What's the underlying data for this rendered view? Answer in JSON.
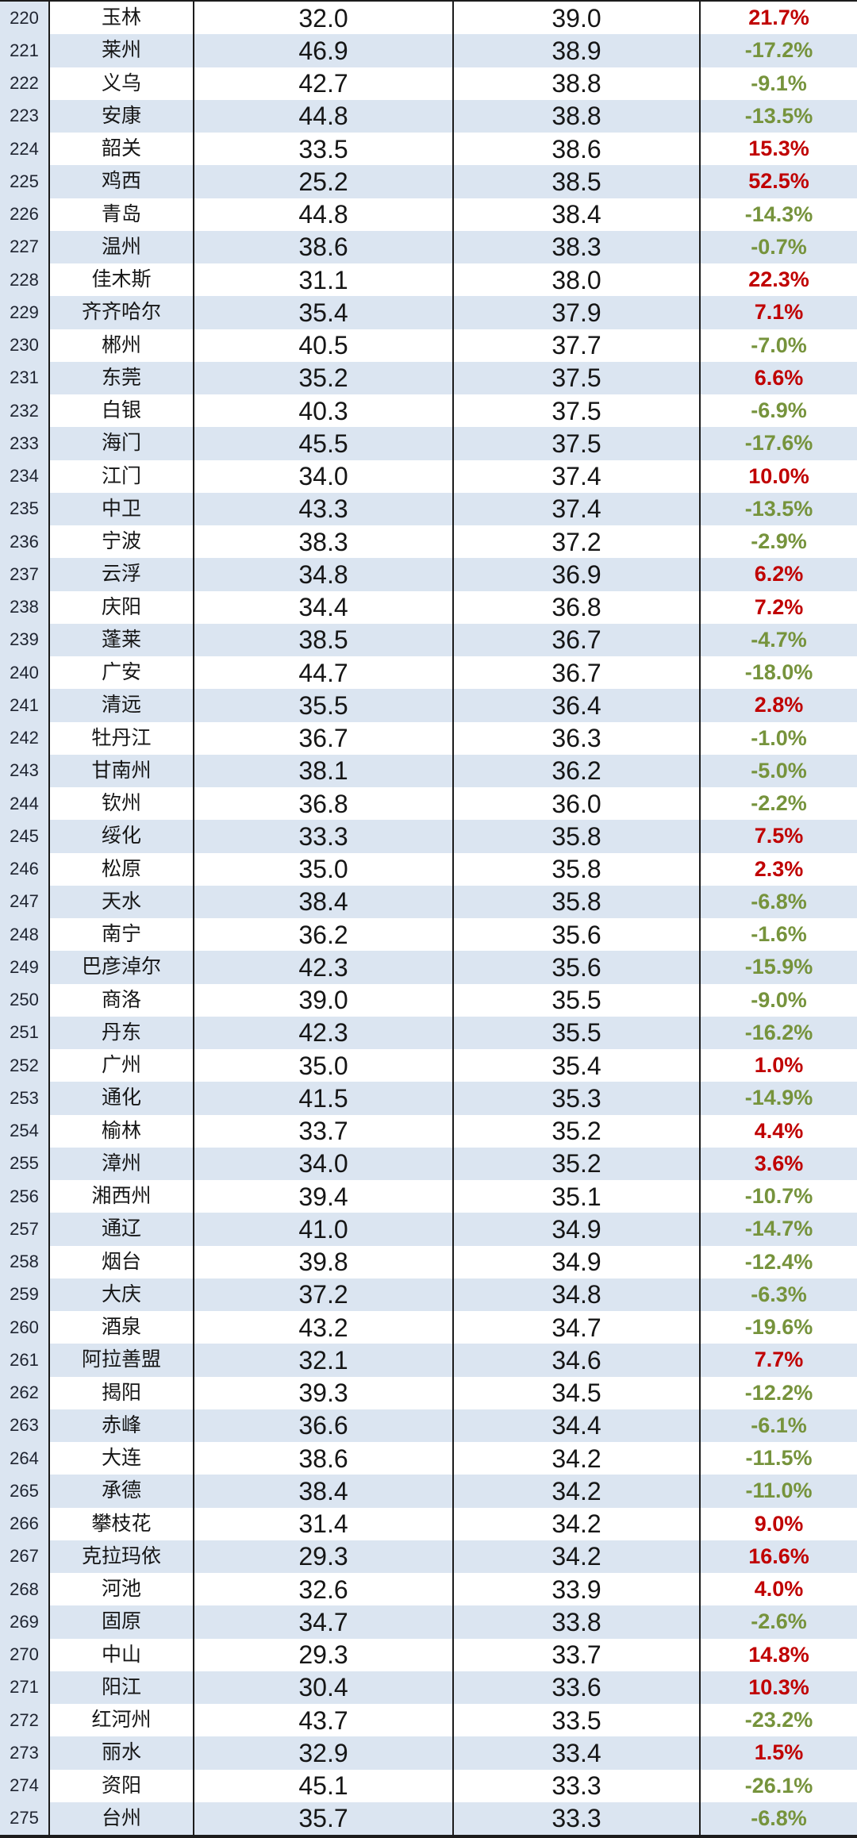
{
  "table": {
    "colors": {
      "positive_change": "#c00000",
      "negative_change": "#76933c",
      "alt_row_bg": "#dbe5f1",
      "base_row_bg": "#ffffff",
      "grid_border": "#1c1c1c"
    },
    "rows": [
      {
        "rank": "220",
        "city": "玉林",
        "v1": "32.0",
        "v2": "39.0",
        "change": "21.7%",
        "dir": "up"
      },
      {
        "rank": "221",
        "city": "莱州",
        "v1": "46.9",
        "v2": "38.9",
        "change": "-17.2%",
        "dir": "down"
      },
      {
        "rank": "222",
        "city": "义乌",
        "v1": "42.7",
        "v2": "38.8",
        "change": "-9.1%",
        "dir": "down"
      },
      {
        "rank": "223",
        "city": "安康",
        "v1": "44.8",
        "v2": "38.8",
        "change": "-13.5%",
        "dir": "down"
      },
      {
        "rank": "224",
        "city": "韶关",
        "v1": "33.5",
        "v2": "38.6",
        "change": "15.3%",
        "dir": "up"
      },
      {
        "rank": "225",
        "city": "鸡西",
        "v1": "25.2",
        "v2": "38.5",
        "change": "52.5%",
        "dir": "up"
      },
      {
        "rank": "226",
        "city": "青岛",
        "v1": "44.8",
        "v2": "38.4",
        "change": "-14.3%",
        "dir": "down"
      },
      {
        "rank": "227",
        "city": "温州",
        "v1": "38.6",
        "v2": "38.3",
        "change": "-0.7%",
        "dir": "down"
      },
      {
        "rank": "228",
        "city": "佳木斯",
        "v1": "31.1",
        "v2": "38.0",
        "change": "22.3%",
        "dir": "up"
      },
      {
        "rank": "229",
        "city": "齐齐哈尔",
        "v1": "35.4",
        "v2": "37.9",
        "change": "7.1%",
        "dir": "up"
      },
      {
        "rank": "230",
        "city": "郴州",
        "v1": "40.5",
        "v2": "37.7",
        "change": "-7.0%",
        "dir": "down"
      },
      {
        "rank": "231",
        "city": "东莞",
        "v1": "35.2",
        "v2": "37.5",
        "change": "6.6%",
        "dir": "up"
      },
      {
        "rank": "232",
        "city": "白银",
        "v1": "40.3",
        "v2": "37.5",
        "change": "-6.9%",
        "dir": "down"
      },
      {
        "rank": "233",
        "city": "海门",
        "v1": "45.5",
        "v2": "37.5",
        "change": "-17.6%",
        "dir": "down"
      },
      {
        "rank": "234",
        "city": "江门",
        "v1": "34.0",
        "v2": "37.4",
        "change": "10.0%",
        "dir": "up"
      },
      {
        "rank": "235",
        "city": "中卫",
        "v1": "43.3",
        "v2": "37.4",
        "change": "-13.5%",
        "dir": "down"
      },
      {
        "rank": "236",
        "city": "宁波",
        "v1": "38.3",
        "v2": "37.2",
        "change": "-2.9%",
        "dir": "down"
      },
      {
        "rank": "237",
        "city": "云浮",
        "v1": "34.8",
        "v2": "36.9",
        "change": "6.2%",
        "dir": "up"
      },
      {
        "rank": "238",
        "city": "庆阳",
        "v1": "34.4",
        "v2": "36.8",
        "change": "7.2%",
        "dir": "up"
      },
      {
        "rank": "239",
        "city": "蓬莱",
        "v1": "38.5",
        "v2": "36.7",
        "change": "-4.7%",
        "dir": "down"
      },
      {
        "rank": "240",
        "city": "广安",
        "v1": "44.7",
        "v2": "36.7",
        "change": "-18.0%",
        "dir": "down"
      },
      {
        "rank": "241",
        "city": "清远",
        "v1": "35.5",
        "v2": "36.4",
        "change": "2.8%",
        "dir": "up"
      },
      {
        "rank": "242",
        "city": "牡丹江",
        "v1": "36.7",
        "v2": "36.3",
        "change": "-1.0%",
        "dir": "down"
      },
      {
        "rank": "243",
        "city": "甘南州",
        "v1": "38.1",
        "v2": "36.2",
        "change": "-5.0%",
        "dir": "down"
      },
      {
        "rank": "244",
        "city": "钦州",
        "v1": "36.8",
        "v2": "36.0",
        "change": "-2.2%",
        "dir": "down"
      },
      {
        "rank": "245",
        "city": "绥化",
        "v1": "33.3",
        "v2": "35.8",
        "change": "7.5%",
        "dir": "up"
      },
      {
        "rank": "246",
        "city": "松原",
        "v1": "35.0",
        "v2": "35.8",
        "change": "2.3%",
        "dir": "up"
      },
      {
        "rank": "247",
        "city": "天水",
        "v1": "38.4",
        "v2": "35.8",
        "change": "-6.8%",
        "dir": "down"
      },
      {
        "rank": "248",
        "city": "南宁",
        "v1": "36.2",
        "v2": "35.6",
        "change": "-1.6%",
        "dir": "down"
      },
      {
        "rank": "249",
        "city": "巴彦淖尔",
        "v1": "42.3",
        "v2": "35.6",
        "change": "-15.9%",
        "dir": "down"
      },
      {
        "rank": "250",
        "city": "商洛",
        "v1": "39.0",
        "v2": "35.5",
        "change": "-9.0%",
        "dir": "down"
      },
      {
        "rank": "251",
        "city": "丹东",
        "v1": "42.3",
        "v2": "35.5",
        "change": "-16.2%",
        "dir": "down"
      },
      {
        "rank": "252",
        "city": "广州",
        "v1": "35.0",
        "v2": "35.4",
        "change": "1.0%",
        "dir": "up"
      },
      {
        "rank": "253",
        "city": "通化",
        "v1": "41.5",
        "v2": "35.3",
        "change": "-14.9%",
        "dir": "down"
      },
      {
        "rank": "254",
        "city": "榆林",
        "v1": "33.7",
        "v2": "35.2",
        "change": "4.4%",
        "dir": "up"
      },
      {
        "rank": "255",
        "city": "漳州",
        "v1": "34.0",
        "v2": "35.2",
        "change": "3.6%",
        "dir": "up"
      },
      {
        "rank": "256",
        "city": "湘西州",
        "v1": "39.4",
        "v2": "35.1",
        "change": "-10.7%",
        "dir": "down"
      },
      {
        "rank": "257",
        "city": "通辽",
        "v1": "41.0",
        "v2": "34.9",
        "change": "-14.7%",
        "dir": "down"
      },
      {
        "rank": "258",
        "city": "烟台",
        "v1": "39.8",
        "v2": "34.9",
        "change": "-12.4%",
        "dir": "down"
      },
      {
        "rank": "259",
        "city": "大庆",
        "v1": "37.2",
        "v2": "34.8",
        "change": "-6.3%",
        "dir": "down"
      },
      {
        "rank": "260",
        "city": "酒泉",
        "v1": "43.2",
        "v2": "34.7",
        "change": "-19.6%",
        "dir": "down"
      },
      {
        "rank": "261",
        "city": "阿拉善盟",
        "v1": "32.1",
        "v2": "34.6",
        "change": "7.7%",
        "dir": "up"
      },
      {
        "rank": "262",
        "city": "揭阳",
        "v1": "39.3",
        "v2": "34.5",
        "change": "-12.2%",
        "dir": "down"
      },
      {
        "rank": "263",
        "city": "赤峰",
        "v1": "36.6",
        "v2": "34.4",
        "change": "-6.1%",
        "dir": "down"
      },
      {
        "rank": "264",
        "city": "大连",
        "v1": "38.6",
        "v2": "34.2",
        "change": "-11.5%",
        "dir": "down"
      },
      {
        "rank": "265",
        "city": "承德",
        "v1": "38.4",
        "v2": "34.2",
        "change": "-11.0%",
        "dir": "down"
      },
      {
        "rank": "266",
        "city": "攀枝花",
        "v1": "31.4",
        "v2": "34.2",
        "change": "9.0%",
        "dir": "up"
      },
      {
        "rank": "267",
        "city": "克拉玛依",
        "v1": "29.3",
        "v2": "34.2",
        "change": "16.6%",
        "dir": "up"
      },
      {
        "rank": "268",
        "city": "河池",
        "v1": "32.6",
        "v2": "33.9",
        "change": "4.0%",
        "dir": "up"
      },
      {
        "rank": "269",
        "city": "固原",
        "v1": "34.7",
        "v2": "33.8",
        "change": "-2.6%",
        "dir": "down"
      },
      {
        "rank": "270",
        "city": "中山",
        "v1": "29.3",
        "v2": "33.7",
        "change": "14.8%",
        "dir": "up"
      },
      {
        "rank": "271",
        "city": "阳江",
        "v1": "30.4",
        "v2": "33.6",
        "change": "10.3%",
        "dir": "up"
      },
      {
        "rank": "272",
        "city": "红河州",
        "v1": "43.7",
        "v2": "33.5",
        "change": "-23.2%",
        "dir": "down"
      },
      {
        "rank": "273",
        "city": "丽水",
        "v1": "32.9",
        "v2": "33.4",
        "change": "1.5%",
        "dir": "up"
      },
      {
        "rank": "274",
        "city": "资阳",
        "v1": "45.1",
        "v2": "33.3",
        "change": "-26.1%",
        "dir": "down"
      },
      {
        "rank": "275",
        "city": "台州",
        "v1": "35.7",
        "v2": "33.3",
        "change": "-6.8%",
        "dir": "down"
      }
    ]
  },
  "chart_data": {
    "type": "table",
    "title": "",
    "notes_visible_columns": [
      "rank",
      "city",
      "value_column_1",
      "value_column_2",
      "percent_change"
    ],
    "rows": [
      [
        220,
        "玉林",
        32.0,
        39.0,
        "21.7%"
      ],
      [
        221,
        "莱州",
        46.9,
        38.9,
        "-17.2%"
      ],
      [
        222,
        "义乌",
        42.7,
        38.8,
        "-9.1%"
      ],
      [
        223,
        "安康",
        44.8,
        38.8,
        "-13.5%"
      ],
      [
        224,
        "韶关",
        33.5,
        38.6,
        "15.3%"
      ],
      [
        225,
        "鸡西",
        25.2,
        38.5,
        "52.5%"
      ],
      [
        226,
        "青岛",
        44.8,
        38.4,
        "-14.3%"
      ],
      [
        227,
        "温州",
        38.6,
        38.3,
        "-0.7%"
      ],
      [
        228,
        "佳木斯",
        31.1,
        38.0,
        "22.3%"
      ],
      [
        229,
        "齐齐哈尔",
        35.4,
        37.9,
        "7.1%"
      ],
      [
        230,
        "郴州",
        40.5,
        37.7,
        "-7.0%"
      ],
      [
        231,
        "东莞",
        35.2,
        37.5,
        "6.6%"
      ],
      [
        232,
        "白银",
        40.3,
        37.5,
        "-6.9%"
      ],
      [
        233,
        "海门",
        45.5,
        37.5,
        "-17.6%"
      ],
      [
        234,
        "江门",
        34.0,
        37.4,
        "10.0%"
      ],
      [
        235,
        "中卫",
        43.3,
        37.4,
        "-13.5%"
      ],
      [
        236,
        "宁波",
        38.3,
        37.2,
        "-2.9%"
      ],
      [
        237,
        "云浮",
        34.8,
        36.9,
        "6.2%"
      ],
      [
        238,
        "庆阳",
        34.4,
        36.8,
        "7.2%"
      ],
      [
        239,
        "蓬莱",
        38.5,
        36.7,
        "-4.7%"
      ],
      [
        240,
        "广安",
        44.7,
        36.7,
        "-18.0%"
      ],
      [
        241,
        "清远",
        35.5,
        36.4,
        "2.8%"
      ],
      [
        242,
        "牡丹江",
        36.7,
        36.3,
        "-1.0%"
      ],
      [
        243,
        "甘南州",
        38.1,
        36.2,
        "-5.0%"
      ],
      [
        244,
        "钦州",
        36.8,
        36.0,
        "-2.2%"
      ],
      [
        245,
        "绥化",
        33.3,
        35.8,
        "7.5%"
      ],
      [
        246,
        "松原",
        35.0,
        35.8,
        "2.3%"
      ],
      [
        247,
        "天水",
        38.4,
        35.8,
        "-6.8%"
      ],
      [
        248,
        "南宁",
        36.2,
        35.6,
        "-1.6%"
      ],
      [
        249,
        "巴彦淖尔",
        42.3,
        35.6,
        "-15.9%"
      ],
      [
        250,
        "商洛",
        39.0,
        35.5,
        "-9.0%"
      ],
      [
        251,
        "丹东",
        42.3,
        35.5,
        "-16.2%"
      ],
      [
        252,
        "广州",
        35.0,
        35.4,
        "1.0%"
      ],
      [
        253,
        "通化",
        41.5,
        35.3,
        "-14.9%"
      ],
      [
        254,
        "榆林",
        33.7,
        35.2,
        "4.4%"
      ],
      [
        255,
        "漳州",
        34.0,
        35.2,
        "3.6%"
      ],
      [
        256,
        "湘西州",
        39.4,
        35.1,
        "-10.7%"
      ],
      [
        257,
        "通辽",
        41.0,
        34.9,
        "-14.7%"
      ],
      [
        258,
        "烟台",
        39.8,
        34.9,
        "-12.4%"
      ],
      [
        259,
        "大庆",
        37.2,
        34.8,
        "-6.3%"
      ],
      [
        260,
        "酒泉",
        43.2,
        34.7,
        "-19.6%"
      ],
      [
        261,
        "阿拉善盟",
        32.1,
        34.6,
        "7.7%"
      ],
      [
        262,
        "揭阳",
        39.3,
        34.5,
        "-12.2%"
      ],
      [
        263,
        "赤峰",
        36.6,
        34.4,
        "-6.1%"
      ],
      [
        264,
        "大连",
        38.6,
        34.2,
        "-11.5%"
      ],
      [
        265,
        "承德",
        38.4,
        34.2,
        "-11.0%"
      ],
      [
        266,
        "攀枝花",
        31.4,
        34.2,
        "9.0%"
      ],
      [
        267,
        "克拉玛依",
        29.3,
        34.2,
        "16.6%"
      ],
      [
        268,
        "河池",
        32.6,
        33.9,
        "4.0%"
      ],
      [
        269,
        "固原",
        34.7,
        33.8,
        "-2.6%"
      ],
      [
        270,
        "中山",
        29.3,
        33.7,
        "14.8%"
      ],
      [
        271,
        "阳江",
        30.4,
        33.6,
        "10.3%"
      ],
      [
        272,
        "红河州",
        43.7,
        33.5,
        "-23.2%"
      ],
      [
        273,
        "丽水",
        32.9,
        33.4,
        "1.5%"
      ],
      [
        274,
        "资阳",
        45.1,
        33.3,
        "-26.1%"
      ],
      [
        275,
        "台州",
        35.7,
        33.3,
        "-6.8%"
      ]
    ]
  }
}
